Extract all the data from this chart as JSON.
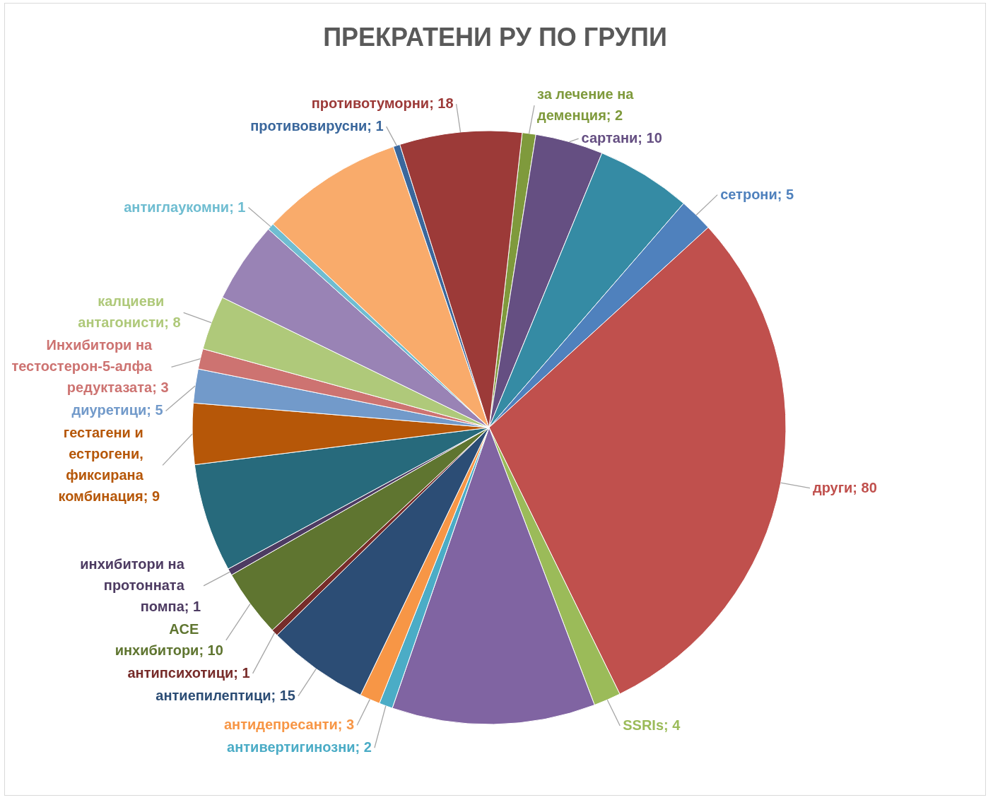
{
  "chart_data": {
    "type": "pie",
    "title": "ПРЕКРАТЕНИ РУ ПО ГРУПИ",
    "categories": [
      "за лечение на деменция",
      "сартани",
      null,
      "сетрони",
      "други",
      "SSRIs",
      null,
      "антивертигинозни",
      "антидепресанти",
      "антиепилептици",
      "антипсихотици",
      "ACE инхибитори",
      "инхибитори на протонната помпа",
      null,
      "гестагени и естрогени, фиксирана комбинация",
      "диуретици",
      "Инхибитори на тестостерон-5-алфа редуктазата",
      "калциеви антагонисти",
      null,
      "антиглаукомни",
      null,
      "противовирусни",
      "противотуморни"
    ],
    "values": [
      2,
      10,
      14,
      5,
      80,
      4,
      30,
      2,
      3,
      15,
      1,
      10,
      1,
      16,
      9,
      5,
      3,
      8,
      12,
      1,
      21,
      1,
      18
    ],
    "value_labels": [
      "; 2",
      "; 10",
      null,
      "; 5",
      "; 80",
      "; 4",
      null,
      "; 2",
      "; 3",
      "; 15",
      "; 1",
      "; 10",
      "; 1",
      null,
      "; 9",
      "; 5",
      "; 3",
      "; 8",
      null,
      "; 1",
      null,
      "; 1",
      "; 18"
    ],
    "colors": [
      "#7f9a3c",
      "#654f82",
      "#358ba4",
      "#4f81bd",
      "#c0504d",
      "#9bbb59",
      "#8064a2",
      "#4bacc6",
      "#f79646",
      "#2c4d75",
      "#772c2a",
      "#5f7530",
      "#4d3b62",
      "#276a7c",
      "#b65708",
      "#729aca",
      "#cd7371",
      "#afc97a",
      "#9983b5",
      "#6fbdd1",
      "#f9ab6b",
      "#3a679c",
      "#9c3a38"
    ]
  }
}
